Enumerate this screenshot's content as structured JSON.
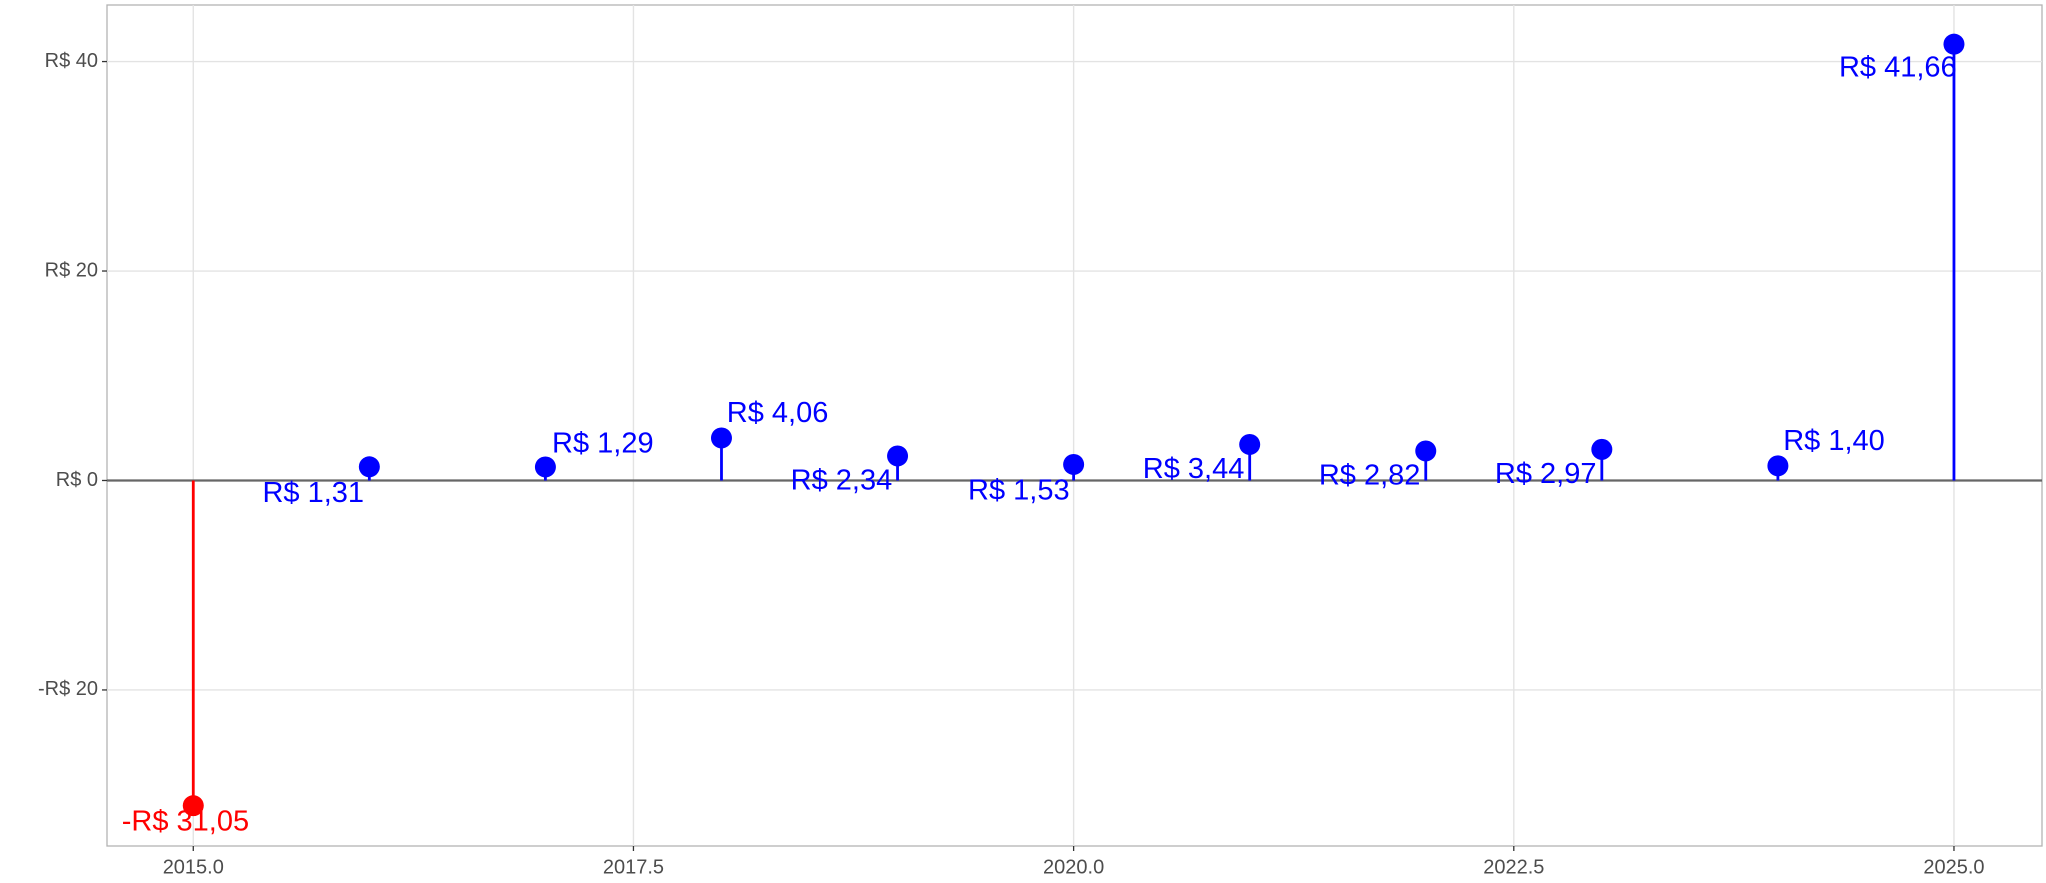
{
  "chart_data": {
    "type": "lollipop",
    "x": [
      2015,
      2016,
      2017,
      2018,
      2019,
      2020,
      2021,
      2022,
      2023,
      2024,
      2025
    ],
    "values": [
      -31.05,
      1.31,
      1.29,
      4.06,
      2.34,
      1.53,
      3.44,
      2.82,
      2.97,
      1.4,
      41.66
    ],
    "value_labels": [
      "-R$ 31,05",
      "R$ 1,31",
      "R$ 1,29",
      "R$ 4,06",
      "R$ 2,34",
      "R$ 1,53",
      "R$ 3,44",
      "R$ 2,82",
      "R$ 2,97",
      "R$ 1,40",
      "R$ 41,66"
    ],
    "color_positive": "#0000ff",
    "color_negative": "#ff0000",
    "xlim": [
      2014.51,
      2025.5
    ],
    "xticks": [
      {
        "value": 2015,
        "label": "2015.0"
      },
      {
        "value": 2017.5,
        "label": "2017.5"
      },
      {
        "value": 2020,
        "label": "2020.0"
      },
      {
        "value": 2022.5,
        "label": "2022.5"
      },
      {
        "value": 2025,
        "label": "2025.0"
      }
    ],
    "ylim": [
      -34.9,
      45.4
    ],
    "yticks": [
      {
        "value": -20,
        "label": "-R$ 20"
      },
      {
        "value": 0,
        "label": "R$ 0"
      },
      {
        "value": 20,
        "label": "R$ 20"
      },
      {
        "value": 40,
        "label": "R$ 40"
      }
    ],
    "reference_line": 0,
    "grid": true
  }
}
